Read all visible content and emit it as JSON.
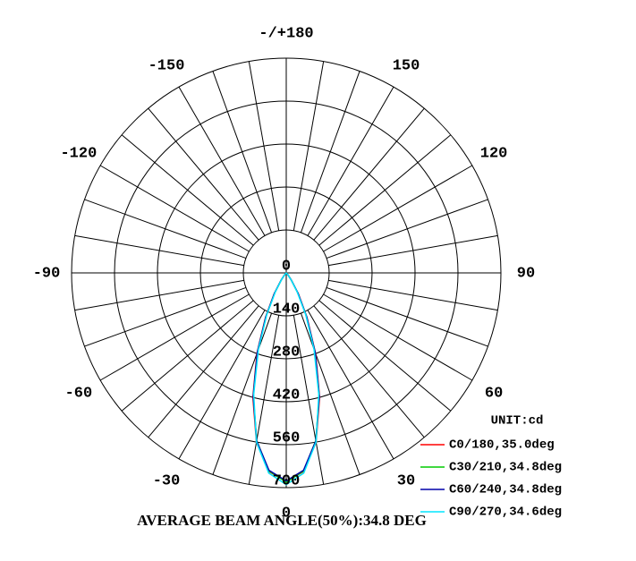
{
  "chart_data": {
    "type": "polar",
    "title": "AVERAGE BEAM ANGLE(50%):34.8 DEG",
    "unit_label": "UNIT:cd",
    "x": [
      -45,
      -40,
      -35,
      -30,
      -25,
      -20,
      -15,
      -10,
      -5,
      0,
      5,
      10,
      15,
      20,
      25,
      30,
      35,
      40,
      45
    ],
    "series": [
      {
        "name": "C0/180,35.0deg",
        "color": "#ff0000",
        "values": [
          0,
          10,
          30,
          80,
          160,
          280,
          420,
          560,
          650,
          680,
          650,
          560,
          420,
          280,
          160,
          80,
          30,
          10,
          0
        ]
      },
      {
        "name": "C30/210,34.8deg",
        "color": "#00cc00",
        "values": [
          0,
          9,
          28,
          75,
          155,
          275,
          415,
          555,
          648,
          682,
          648,
          555,
          415,
          275,
          155,
          75,
          28,
          9,
          0
        ]
      },
      {
        "name": "C60/240,34.8deg",
        "color": "#0000aa",
        "values": [
          0,
          9,
          29,
          77,
          157,
          276,
          416,
          556,
          646,
          678,
          646,
          556,
          416,
          276,
          157,
          77,
          29,
          9,
          0
        ]
      },
      {
        "name": "C90/270,34.6deg",
        "color": "#00e5ff",
        "values": [
          0,
          8,
          28,
          70,
          150,
          265,
          410,
          560,
          655,
          690,
          655,
          560,
          410,
          265,
          150,
          70,
          28,
          8,
          0
        ]
      }
    ],
    "rlim": [
      0,
      700
    ],
    "rticks": [
      0,
      140,
      280,
      420,
      560,
      700
    ],
    "thetaticks": [
      0,
      30,
      60,
      90,
      120,
      150,
      {
        "value": 180,
        "label": "-/+180"
      },
      -150,
      -120,
      -90,
      -60,
      -30
    ],
    "grid": true
  }
}
